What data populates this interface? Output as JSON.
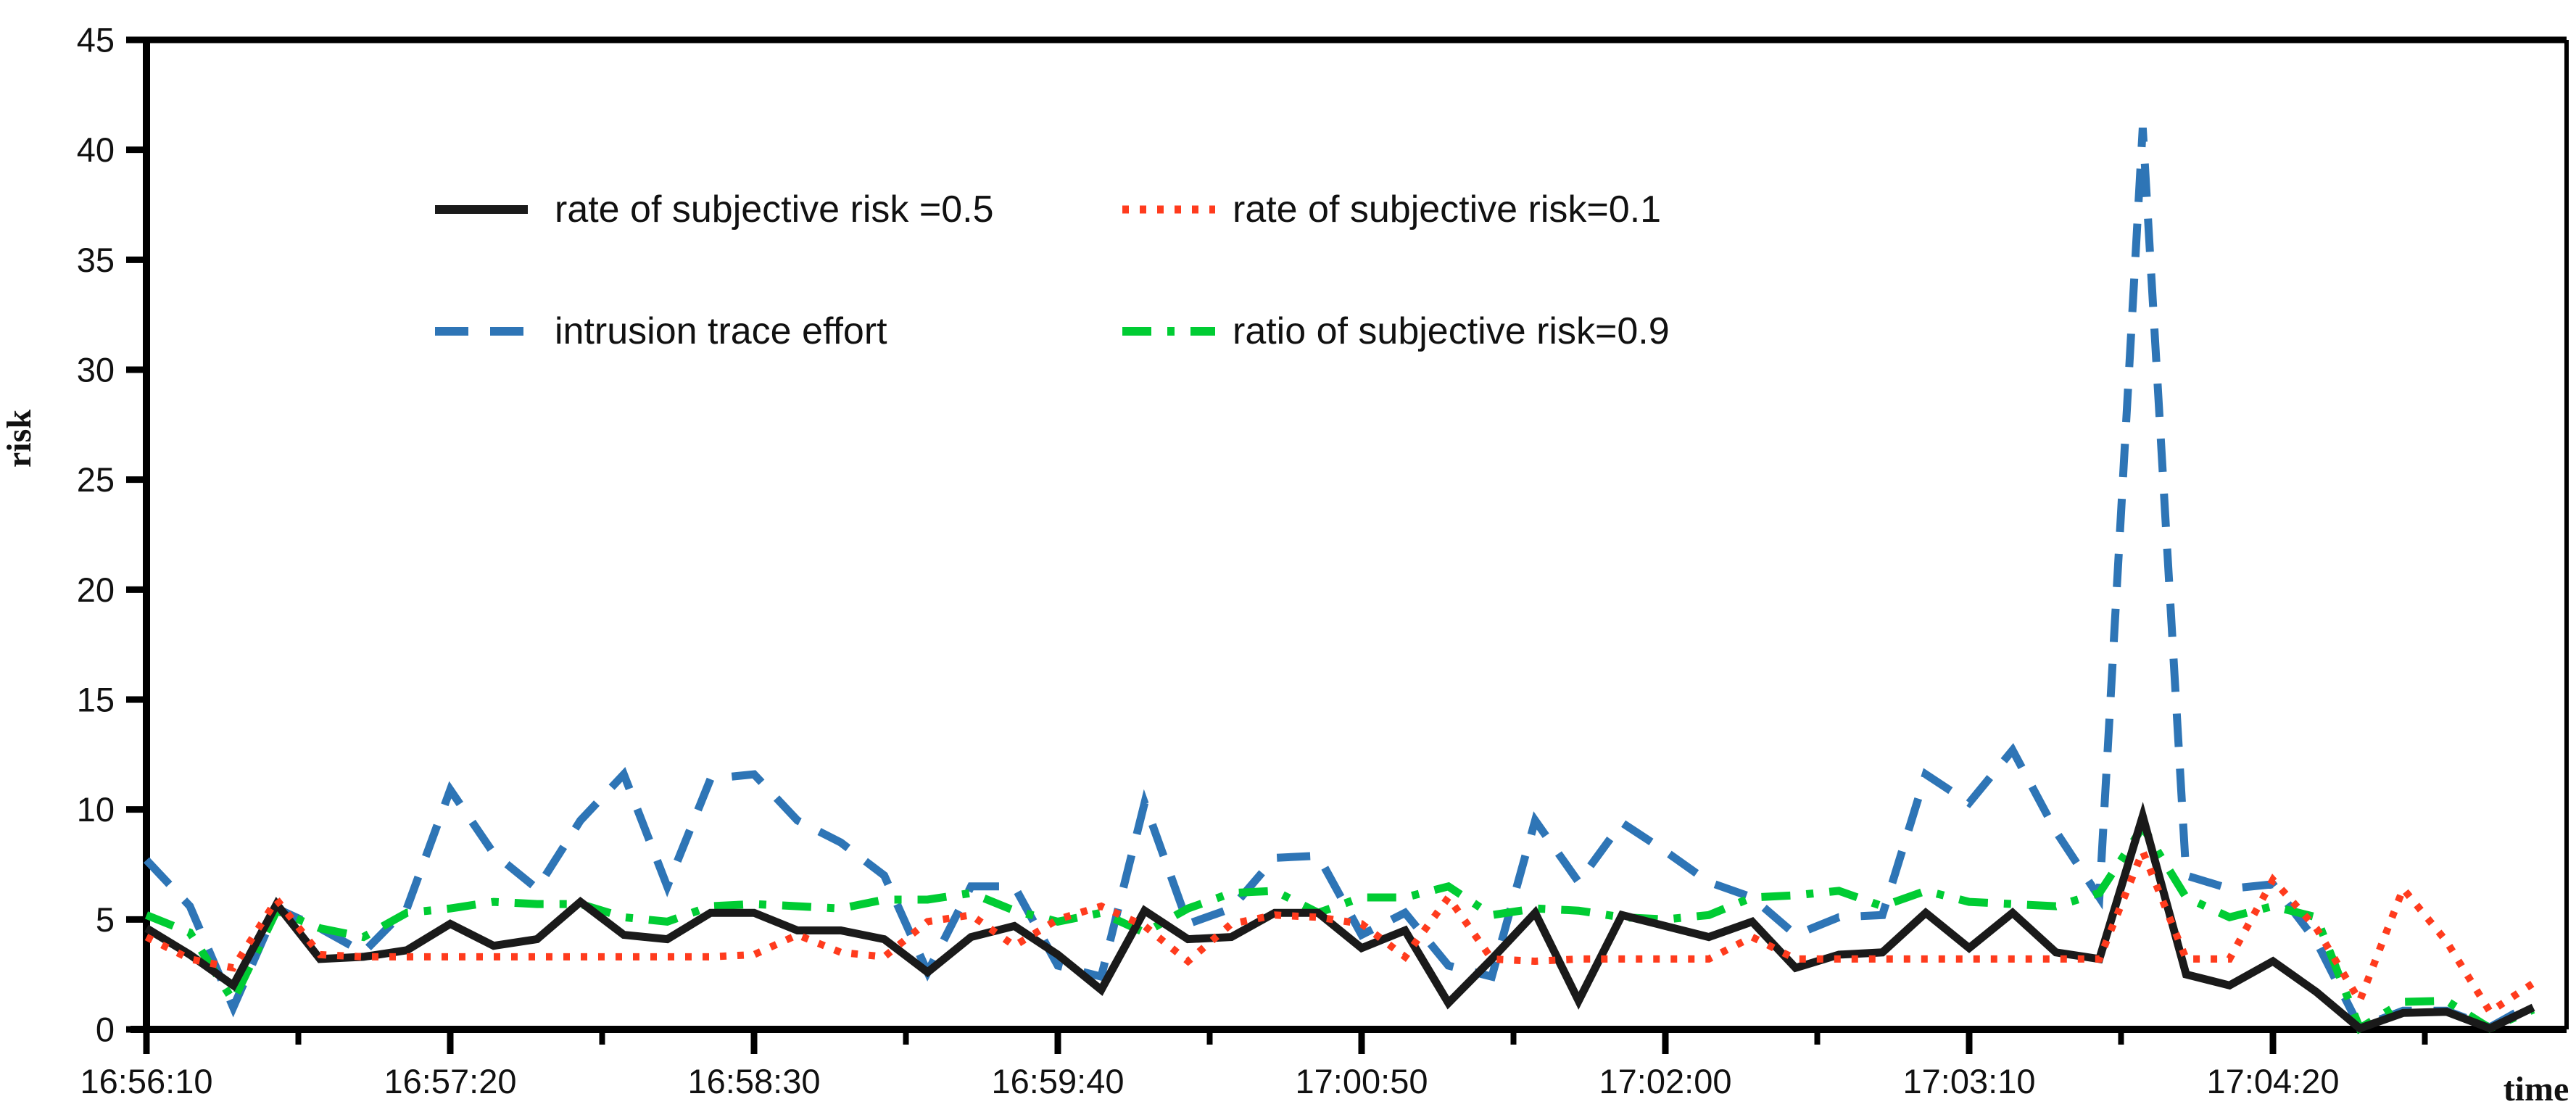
{
  "chart_data": {
    "type": "line",
    "title": "",
    "xlabel": "time",
    "ylabel": "risk",
    "ylim": [
      0,
      45
    ],
    "y_tick_step": 5,
    "y_tick_labels": [
      "0",
      "5",
      "10",
      "15",
      "20",
      "25",
      "30",
      "35",
      "40",
      "45"
    ],
    "x_tick_labels": [
      "16:56:10",
      "16:57:20",
      "16:58:30",
      "16:59:40",
      "17:00:50",
      "17:02:00",
      "17:03:10",
      "17:04:20"
    ],
    "x_major_tick_every_points": 7,
    "sample_interval_seconds": 10,
    "grid": "off",
    "legend_position": "inside-top-left, two columns, no border",
    "x_times": [
      "16:56:10",
      "16:56:20",
      "16:56:30",
      "16:56:40",
      "16:56:50",
      "16:57:00",
      "16:57:10",
      "16:57:20",
      "16:57:30",
      "16:57:40",
      "16:57:50",
      "16:58:00",
      "16:58:10",
      "16:58:20",
      "16:58:30",
      "16:58:40",
      "16:58:50",
      "16:59:00",
      "16:59:10",
      "16:59:20",
      "16:59:30",
      "16:59:40",
      "16:59:50",
      "17:00:00",
      "17:00:10",
      "17:00:20",
      "17:00:30",
      "17:00:40",
      "17:00:50",
      "17:01:00",
      "17:01:10",
      "17:01:20",
      "17:01:30",
      "17:01:40",
      "17:01:50",
      "17:02:00",
      "17:02:10",
      "17:02:20",
      "17:02:30",
      "17:02:40",
      "17:02:50",
      "17:03:00",
      "17:03:10",
      "17:03:20",
      "17:03:30",
      "17:03:40",
      "17:03:50",
      "17:04:00",
      "17:04:10",
      "17:04:20",
      "17:04:30",
      "17:04:40",
      "17:04:50",
      "17:05:00",
      "17:05:10",
      "17:05:20"
    ],
    "series": [
      {
        "name": "rate of subjective risk =0.5",
        "color": "#1a1a1a",
        "style": "solid",
        "values": [
          4.6,
          3.4,
          2.0,
          5.7,
          3.2,
          3.3,
          3.6,
          4.8,
          3.8,
          4.1,
          5.8,
          4.3,
          4.1,
          5.3,
          5.3,
          4.5,
          4.5,
          4.1,
          2.6,
          4.2,
          4.7,
          3.4,
          1.8,
          5.4,
          4.1,
          4.2,
          5.3,
          5.3,
          3.7,
          4.5,
          1.2,
          3.2,
          5.3,
          1.3,
          5.2,
          4.7,
          4.2,
          4.9,
          2.8,
          3.4,
          3.5,
          5.3,
          3.7,
          5.3,
          3.5,
          3.2,
          9.7,
          2.5,
          2.0,
          3.1,
          1.7,
          0.05,
          0.75,
          0.8,
          0.05,
          1.0
        ]
      },
      {
        "name": "rate of subjective risk=0.1",
        "color": "#ff3b1d",
        "style": "dotted",
        "values": [
          4.2,
          3.2,
          2.8,
          5.9,
          3.4,
          3.3,
          3.3,
          3.3,
          3.3,
          3.3,
          3.3,
          3.3,
          3.3,
          3.3,
          3.4,
          4.3,
          3.5,
          3.3,
          4.9,
          5.2,
          3.8,
          5.0,
          5.6,
          4.7,
          3.1,
          4.8,
          5.2,
          5.1,
          4.8,
          3.3,
          6.0,
          3.2,
          3.1,
          3.2,
          3.2,
          3.2,
          3.2,
          4.2,
          3.2,
          3.2,
          3.2,
          3.2,
          3.2,
          3.2,
          3.2,
          3.2,
          8.1,
          3.2,
          3.2,
          6.8,
          4.6,
          1.3,
          6.4,
          4.0,
          0.8,
          2.1
        ]
      },
      {
        "name": "intrusion trace effort",
        "color": "#2e75b6",
        "style": "dashed",
        "values": [
          7.7,
          5.6,
          1.0,
          5.5,
          4.6,
          3.5,
          5.5,
          10.9,
          8.0,
          6.4,
          9.5,
          11.6,
          6.5,
          11.4,
          11.6,
          9.5,
          8.5,
          7.0,
          2.6,
          6.5,
          6.5,
          2.9,
          2.4,
          10.3,
          4.8,
          5.5,
          7.8,
          7.9,
          4.3,
          5.3,
          2.9,
          2.4,
          9.5,
          6.7,
          9.4,
          8.1,
          6.7,
          6.0,
          4.3,
          5.1,
          5.2,
          11.6,
          10.3,
          12.7,
          9.0,
          6.0,
          41.0,
          7.0,
          6.4,
          6.6,
          4.0,
          0.1,
          0.85,
          0.85,
          0.1,
          1.2
        ]
      },
      {
        "name": "ratio of subjective risk=0.9",
        "color": "#00cc33",
        "style": "dash-dot",
        "values": [
          5.2,
          4.4,
          1.3,
          5.4,
          4.6,
          4.2,
          5.3,
          5.5,
          5.8,
          5.7,
          5.7,
          5.1,
          4.9,
          5.6,
          5.7,
          5.6,
          5.5,
          5.9,
          5.9,
          6.2,
          5.4,
          4.9,
          5.3,
          4.4,
          5.5,
          6.2,
          6.3,
          5.3,
          6.0,
          6.0,
          6.5,
          5.2,
          5.5,
          5.4,
          5.1,
          5.0,
          5.2,
          6.0,
          6.1,
          6.3,
          5.6,
          6.3,
          5.8,
          5.7,
          5.6,
          6.2,
          9.2,
          6.0,
          5.1,
          5.6,
          5.1,
          0.05,
          1.25,
          1.3,
          0.05,
          0.9
        ]
      }
    ],
    "legend_order": [
      0,
      1,
      2,
      3
    ]
  }
}
